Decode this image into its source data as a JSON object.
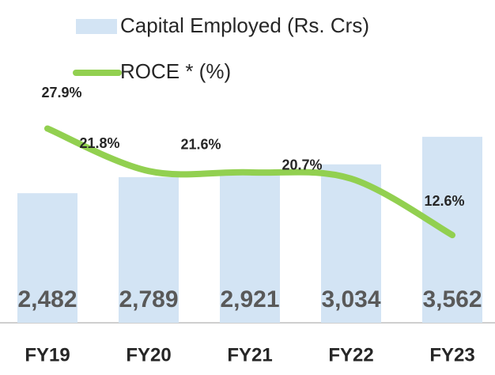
{
  "chart_data": {
    "type": "bar_line",
    "categories": [
      "FY19",
      "FY20",
      "FY21",
      "FY22",
      "FY23"
    ],
    "series": [
      {
        "name": "Capital Employed (Rs. Crs)",
        "color": "#d3e4f4",
        "values": [
          2482,
          2789,
          2921,
          3034,
          3562
        ],
        "value_labels": [
          "2,482",
          "2,789",
          "2,921",
          "3,034",
          "3,562"
        ]
      },
      {
        "name": "ROCE * (%)",
        "color": "#92d050",
        "axis": "y2",
        "values": [
          27.9,
          21.8,
          21.6,
          20.7,
          12.6
        ],
        "value_labels": [
          "27.9%",
          "21.8%",
          "21.6%",
          "20.7%",
          "12.6%"
        ]
      }
    ],
    "ylim": [
      0,
      4000
    ],
    "y2lim": [
      0,
      30
    ],
    "grid": false
  }
}
